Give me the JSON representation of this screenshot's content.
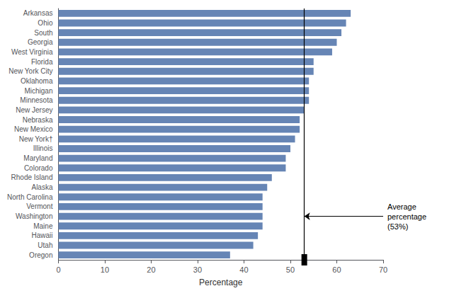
{
  "chart_data": {
    "type": "bar",
    "orientation": "horizontal",
    "categories": [
      "Oregon",
      "Utah",
      "Hawaii",
      "Maine",
      "Washington",
      "Vermont",
      "North Carolina",
      "Alaska",
      "Rhode Island",
      "Colorado",
      "Maryland",
      "Illinois",
      "New York†",
      "New Mexico",
      "Nebraska",
      "New Jersey",
      "Minnesota",
      "Michigan",
      "Oklahoma",
      "New York City",
      "Florida",
      "West Virginia",
      "Georgia",
      "South",
      "Ohio",
      "Arkansas"
    ],
    "values": [
      37,
      42,
      43,
      44,
      44,
      44,
      44,
      45,
      46,
      49,
      49,
      50,
      51,
      52,
      52,
      53,
      54,
      54,
      54,
      55,
      55,
      59,
      60,
      61,
      62,
      63
    ],
    "color": "#6685b5",
    "xlabel": "Percentage",
    "xlim": [
      0,
      70
    ],
    "xticks": [
      0,
      10,
      20,
      30,
      40,
      50,
      60,
      70
    ],
    "grid": false,
    "annotations": [
      {
        "type": "vline",
        "x": 53,
        "text": "Average\npercentage\n(53%)"
      }
    ]
  }
}
